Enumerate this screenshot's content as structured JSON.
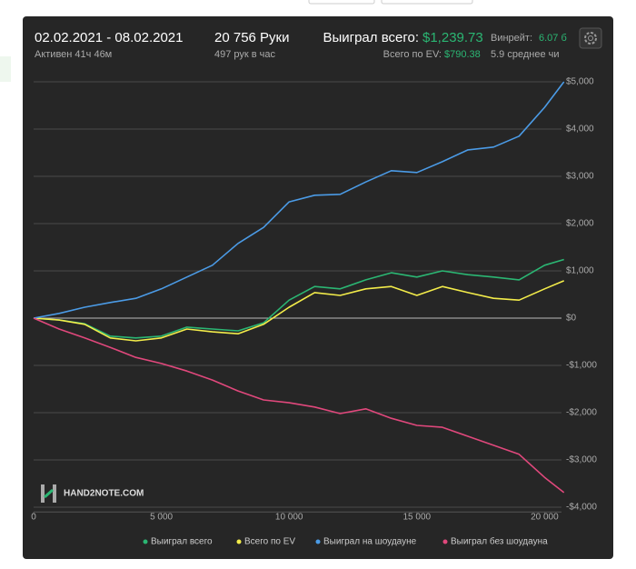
{
  "header": {
    "date_range": "02.02.2021 - 08.02.2021",
    "active": "Активен 41ч 46м",
    "hands": "20 756 Руки",
    "hands_per_hour": "497 рук в час",
    "won_label": "Выиграл всего:",
    "won_value": "$1,239.73",
    "ev_label": "Всего по EV:",
    "ev_value": "$790.38",
    "winrate_label": "Винрейт:",
    "winrate_value": "6.07 б",
    "avg": "5.9 среднее чи"
  },
  "chart_data": {
    "type": "line",
    "watermark": "HAND2NOTE.COM",
    "x": [
      0,
      1000,
      2000,
      3000,
      4000,
      5000,
      6000,
      7000,
      8000,
      9000,
      10000,
      11000,
      12000,
      13000,
      14000,
      15000,
      16000,
      17000,
      18000,
      19000,
      20000,
      20756
    ],
    "series": [
      {
        "name": "Выиграл всего",
        "color": "#2bb673",
        "values": [
          0,
          -40,
          -120,
          -380,
          -420,
          -380,
          -190,
          -230,
          -270,
          -100,
          380,
          670,
          620,
          810,
          960,
          870,
          1000,
          920,
          870,
          810,
          1120,
          1240
        ]
      },
      {
        "name": "Всего по EV",
        "color": "#f3ec4a",
        "values": [
          0,
          -40,
          -130,
          -420,
          -480,
          -420,
          -230,
          -290,
          -330,
          -130,
          230,
          540,
          480,
          620,
          670,
          480,
          670,
          540,
          420,
          380,
          620,
          790
        ]
      },
      {
        "name": "Выиграл на шоудауне",
        "color": "#4b9be6",
        "values": [
          0,
          100,
          230,
          330,
          420,
          620,
          870,
          1120,
          1580,
          1920,
          2460,
          2600,
          2620,
          2880,
          3120,
          3080,
          3310,
          3560,
          3620,
          3850,
          4460,
          5000
        ]
      },
      {
        "name": "Выиграл без шоудауна",
        "color": "#e0487c",
        "values": [
          0,
          -230,
          -420,
          -620,
          -830,
          -960,
          -1120,
          -1310,
          -1540,
          -1730,
          -1790,
          -1880,
          -2020,
          -1920,
          -2120,
          -2270,
          -2310,
          -2500,
          -2690,
          -2880,
          -3370,
          -3690
        ]
      }
    ],
    "xlim": [
      0,
      20800
    ],
    "ylim": [
      -4100,
      5200
    ],
    "xticks": [
      0,
      {
        "value": 5000,
        "label": "5 000"
      },
      {
        "value": 10000,
        "label": "10 000"
      },
      {
        "value": 15000,
        "label": "15 000"
      },
      {
        "value": 20000,
        "label": "20 000"
      }
    ],
    "yticks": [
      {
        "value": -4000,
        "label": "-$4,000"
      },
      {
        "value": -3000,
        "label": "-$3,000"
      },
      {
        "value": -2000,
        "label": "-$2,000"
      },
      {
        "value": -1000,
        "label": "-$1,000"
      },
      {
        "value": 0,
        "label": "$0"
      },
      {
        "value": 1000,
        "label": "$1,000"
      },
      {
        "value": 2000,
        "label": "$2,000"
      },
      {
        "value": 3000,
        "label": "$3,000"
      },
      {
        "value": 4000,
        "label": "$4,000"
      },
      {
        "value": 5000,
        "label": "$5,000"
      }
    ],
    "grid": true
  }
}
